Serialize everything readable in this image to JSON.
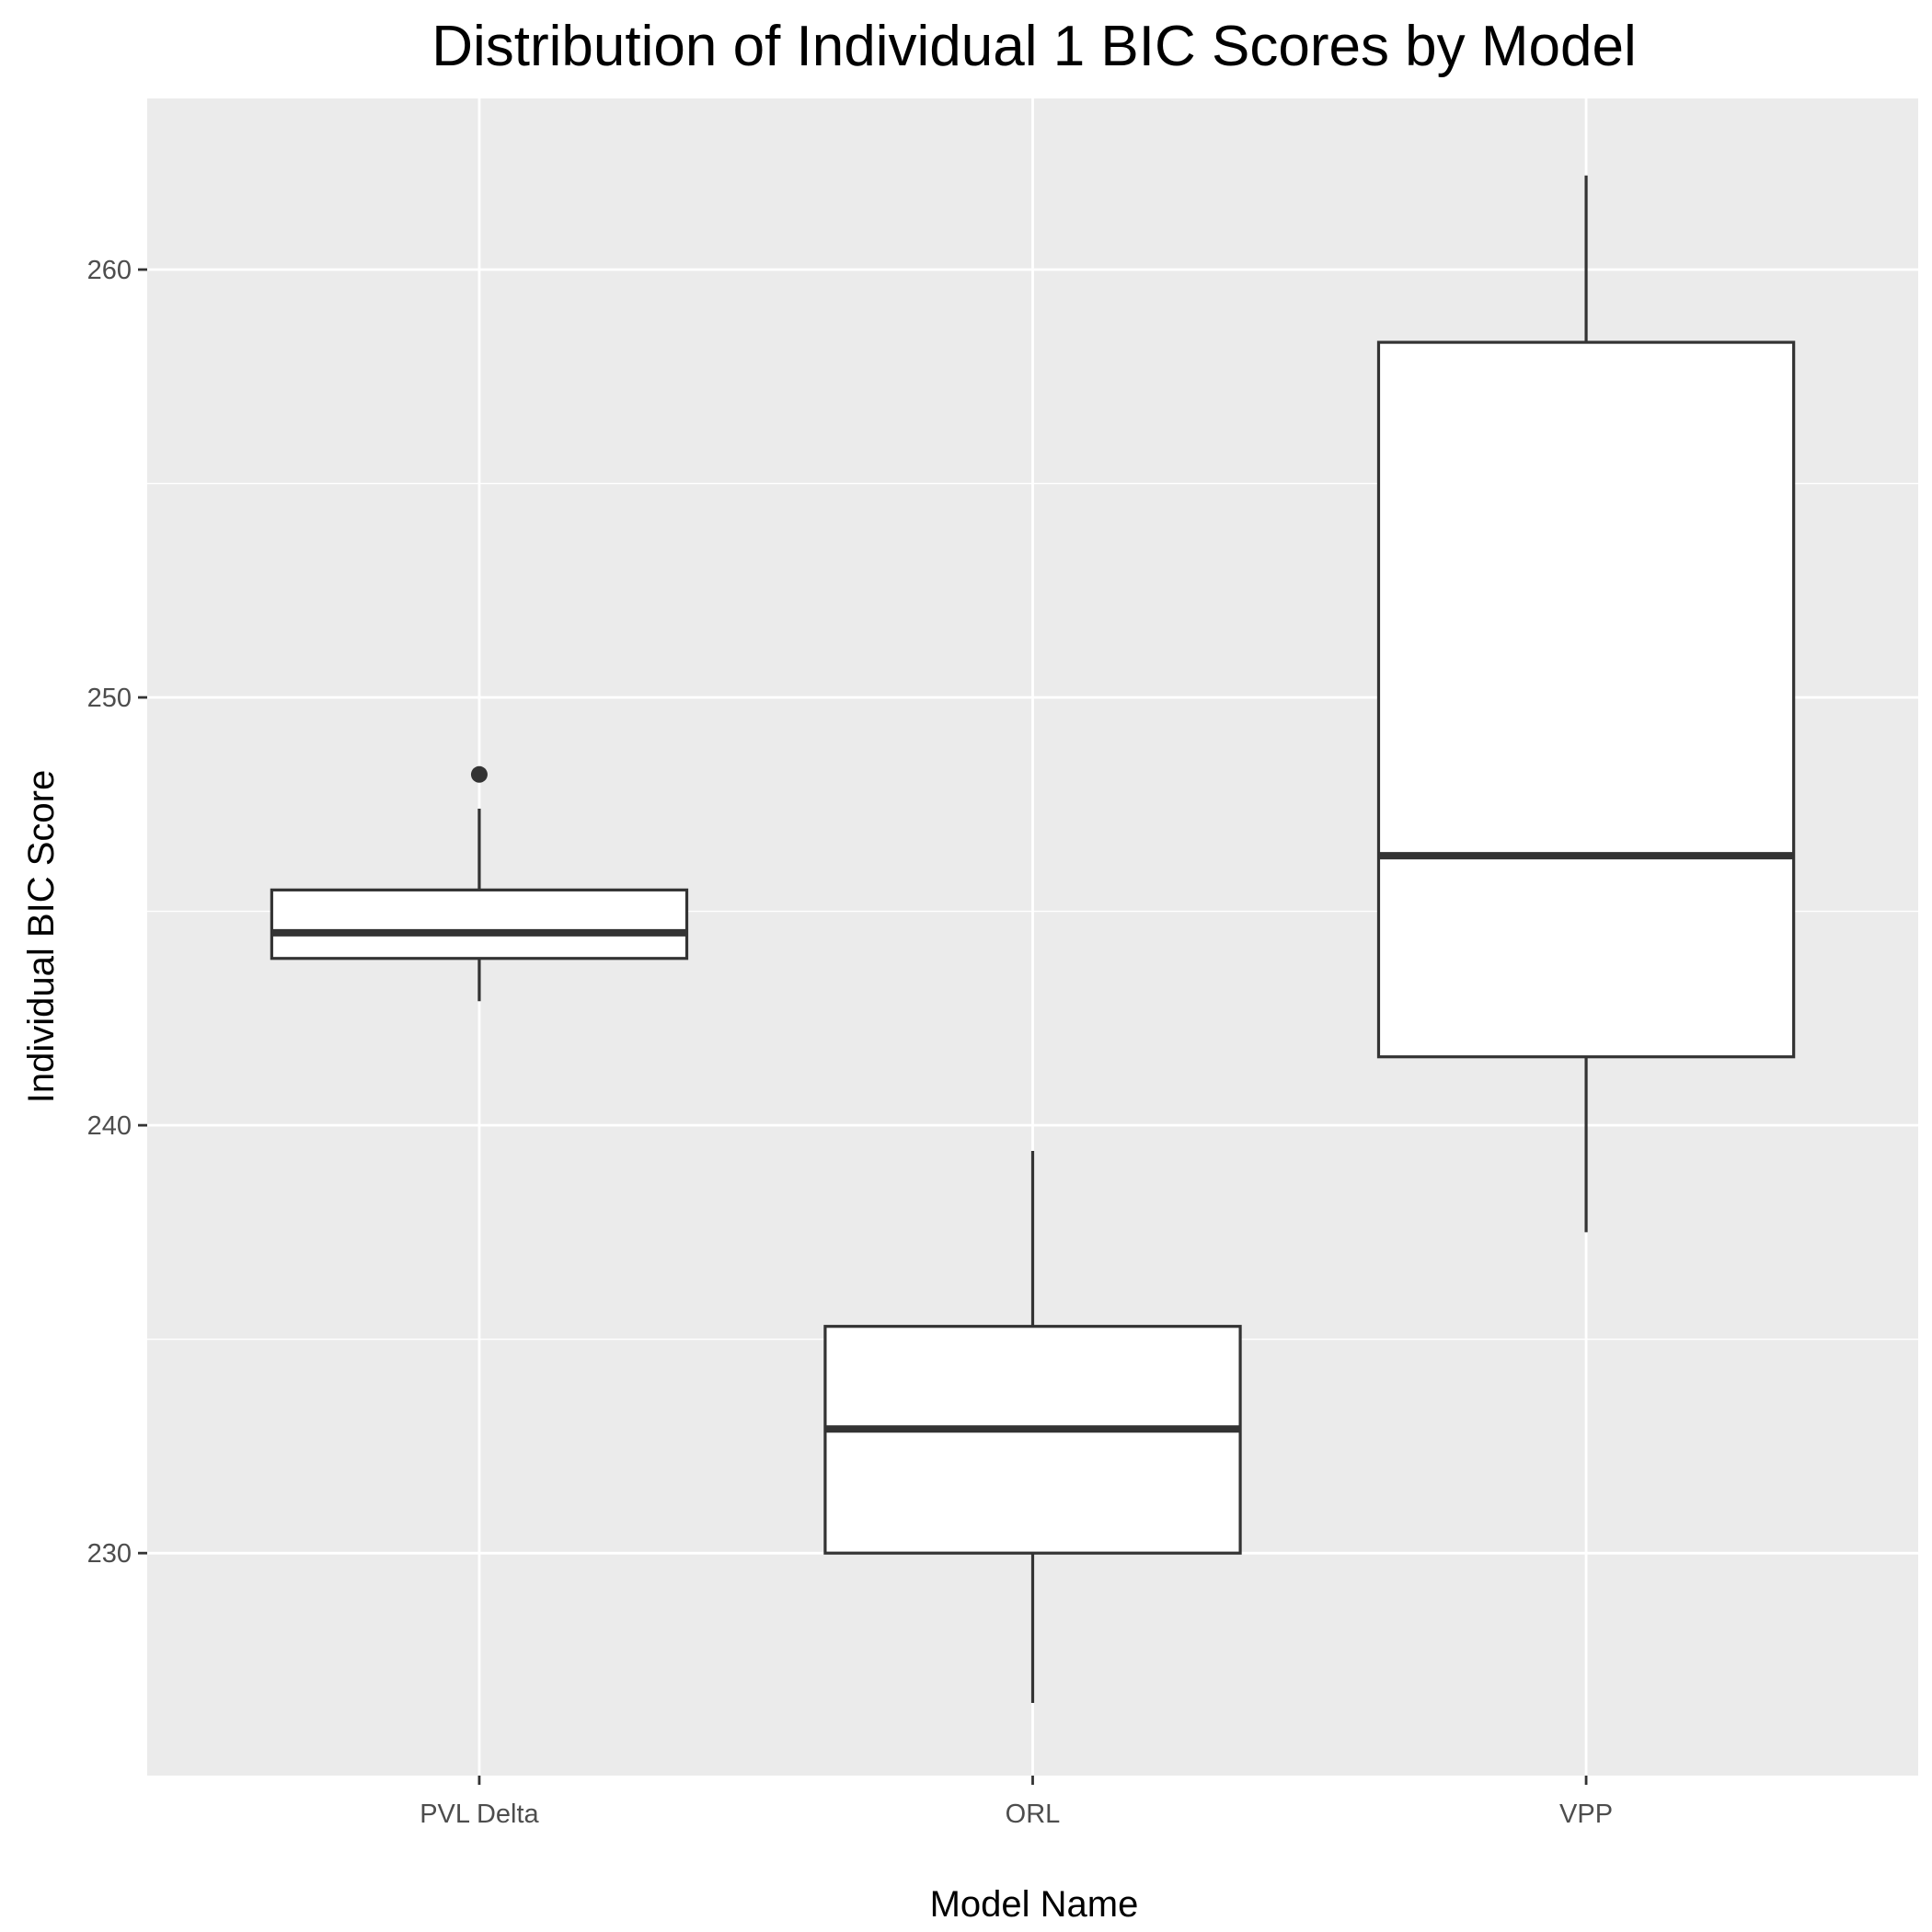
{
  "chart_data": {
    "type": "boxplot",
    "title": "Distribution of Individual 1 BIC Scores by Model",
    "xlabel": "Model Name",
    "ylabel": "Individual BIC Score",
    "ylim": [
      224.8,
      264.0
    ],
    "yticks": [
      230,
      240,
      250,
      260
    ],
    "ytick_labels": [
      "230",
      "240",
      "250",
      "260"
    ],
    "minor_yticks": [
      235,
      245,
      255
    ],
    "grid": true,
    "legend": "none",
    "categories": [
      "PVL Delta",
      "ORL",
      "VPP"
    ],
    "boxes": [
      {
        "category": "PVL Delta",
        "whisker_low": 242.9,
        "q1": 243.9,
        "median": 244.5,
        "q3": 245.5,
        "whisker_high": 247.4,
        "outliers": [
          248.2
        ]
      },
      {
        "category": "ORL",
        "whisker_low": 226.5,
        "q1": 230.0,
        "median": 232.9,
        "q3": 235.3,
        "whisker_high": 239.4,
        "outliers": []
      },
      {
        "category": "VPP",
        "whisker_low": 237.5,
        "q1": 241.6,
        "median": 246.3,
        "q3": 258.3,
        "whisker_high": 262.2,
        "outliers": []
      }
    ]
  }
}
